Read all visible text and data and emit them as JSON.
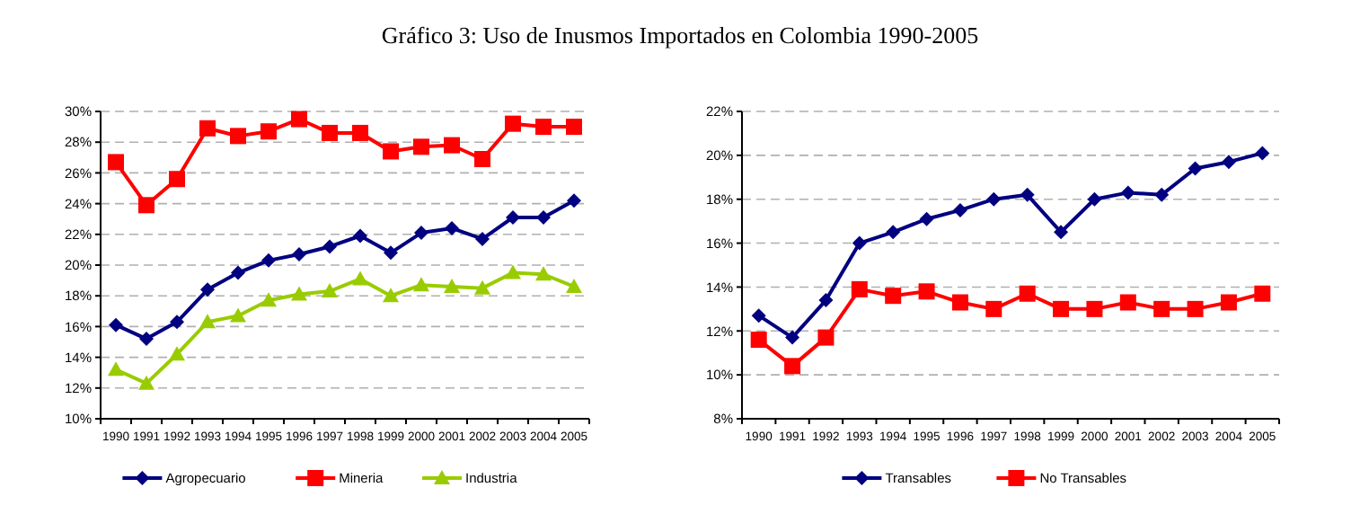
{
  "chart_data": [
    {
      "type": "line",
      "title": "Gráfico 3: Uso de Inusmos Importados en Colombia 1990-2005",
      "categories": [
        "1990",
        "1991",
        "1992",
        "1993",
        "1994",
        "1995",
        "1996",
        "1997",
        "1998",
        "1999",
        "2000",
        "2001",
        "2002",
        "2003",
        "2004",
        "2005"
      ],
      "series": [
        {
          "name": "Agropecuario",
          "color": "#000080",
          "marker": "diamond",
          "values": [
            16.1,
            15.2,
            16.3,
            18.4,
            19.5,
            20.3,
            20.7,
            21.2,
            21.9,
            20.8,
            22.1,
            22.4,
            21.7,
            23.1,
            23.1,
            24.2
          ]
        },
        {
          "name": "Mineria",
          "color": "#ff0000",
          "marker": "square",
          "values": [
            26.7,
            23.9,
            25.6,
            28.9,
            28.4,
            28.7,
            29.5,
            28.6,
            28.6,
            27.4,
            27.7,
            27.8,
            26.9,
            29.2,
            29.0,
            29.0
          ]
        },
        {
          "name": "Industria",
          "color": "#99cc00",
          "marker": "triangle",
          "values": [
            13.2,
            12.3,
            14.2,
            16.3,
            16.7,
            17.7,
            18.1,
            18.3,
            19.1,
            18.0,
            18.7,
            18.6,
            18.5,
            19.5,
            19.4,
            18.6
          ]
        }
      ],
      "ylim": [
        10,
        30
      ],
      "yticks": [
        {
          "value": 10,
          "label": "10%"
        },
        {
          "value": 12,
          "label": "12%"
        },
        {
          "value": 14,
          "label": "14%"
        },
        {
          "value": 16,
          "label": "16%"
        },
        {
          "value": 18,
          "label": "18%"
        },
        {
          "value": 20,
          "label": "20%"
        },
        {
          "value": 22,
          "label": "22%"
        },
        {
          "value": 24,
          "label": "24%"
        },
        {
          "value": 26,
          "label": "26%"
        },
        {
          "value": 28,
          "label": "28%"
        },
        {
          "value": 30,
          "label": "30%"
        }
      ],
      "grid": "y",
      "legend": "bottom"
    },
    {
      "type": "line",
      "categories": [
        "1990",
        "1991",
        "1992",
        "1993",
        "1994",
        "1995",
        "1996",
        "1997",
        "1998",
        "1999",
        "2000",
        "2001",
        "2002",
        "2003",
        "2004",
        "2005"
      ],
      "series": [
        {
          "name": "Transables",
          "color": "#000080",
          "marker": "diamond",
          "values": [
            12.7,
            11.7,
            13.4,
            16.0,
            16.5,
            17.1,
            17.5,
            18.0,
            18.2,
            16.5,
            18.0,
            18.3,
            18.2,
            19.4,
            19.7,
            20.1
          ]
        },
        {
          "name": "No Transables",
          "color": "#ff0000",
          "marker": "square",
          "values": [
            11.6,
            10.4,
            11.7,
            13.9,
            13.6,
            13.8,
            13.3,
            13.0,
            13.7,
            13.0,
            13.0,
            13.3,
            13.0,
            13.0,
            13.3,
            13.7
          ]
        }
      ],
      "ylim": [
        8,
        22
      ],
      "yticks": [
        {
          "value": 8,
          "label": "8%"
        },
        {
          "value": 10,
          "label": "10%"
        },
        {
          "value": 12,
          "label": "12%"
        },
        {
          "value": 14,
          "label": "14%"
        },
        {
          "value": 16,
          "label": "16%"
        },
        {
          "value": 18,
          "label": "18%"
        },
        {
          "value": 20,
          "label": "20%"
        },
        {
          "value": 22,
          "label": "22%"
        }
      ],
      "grid": "y",
      "legend": "bottom"
    }
  ]
}
